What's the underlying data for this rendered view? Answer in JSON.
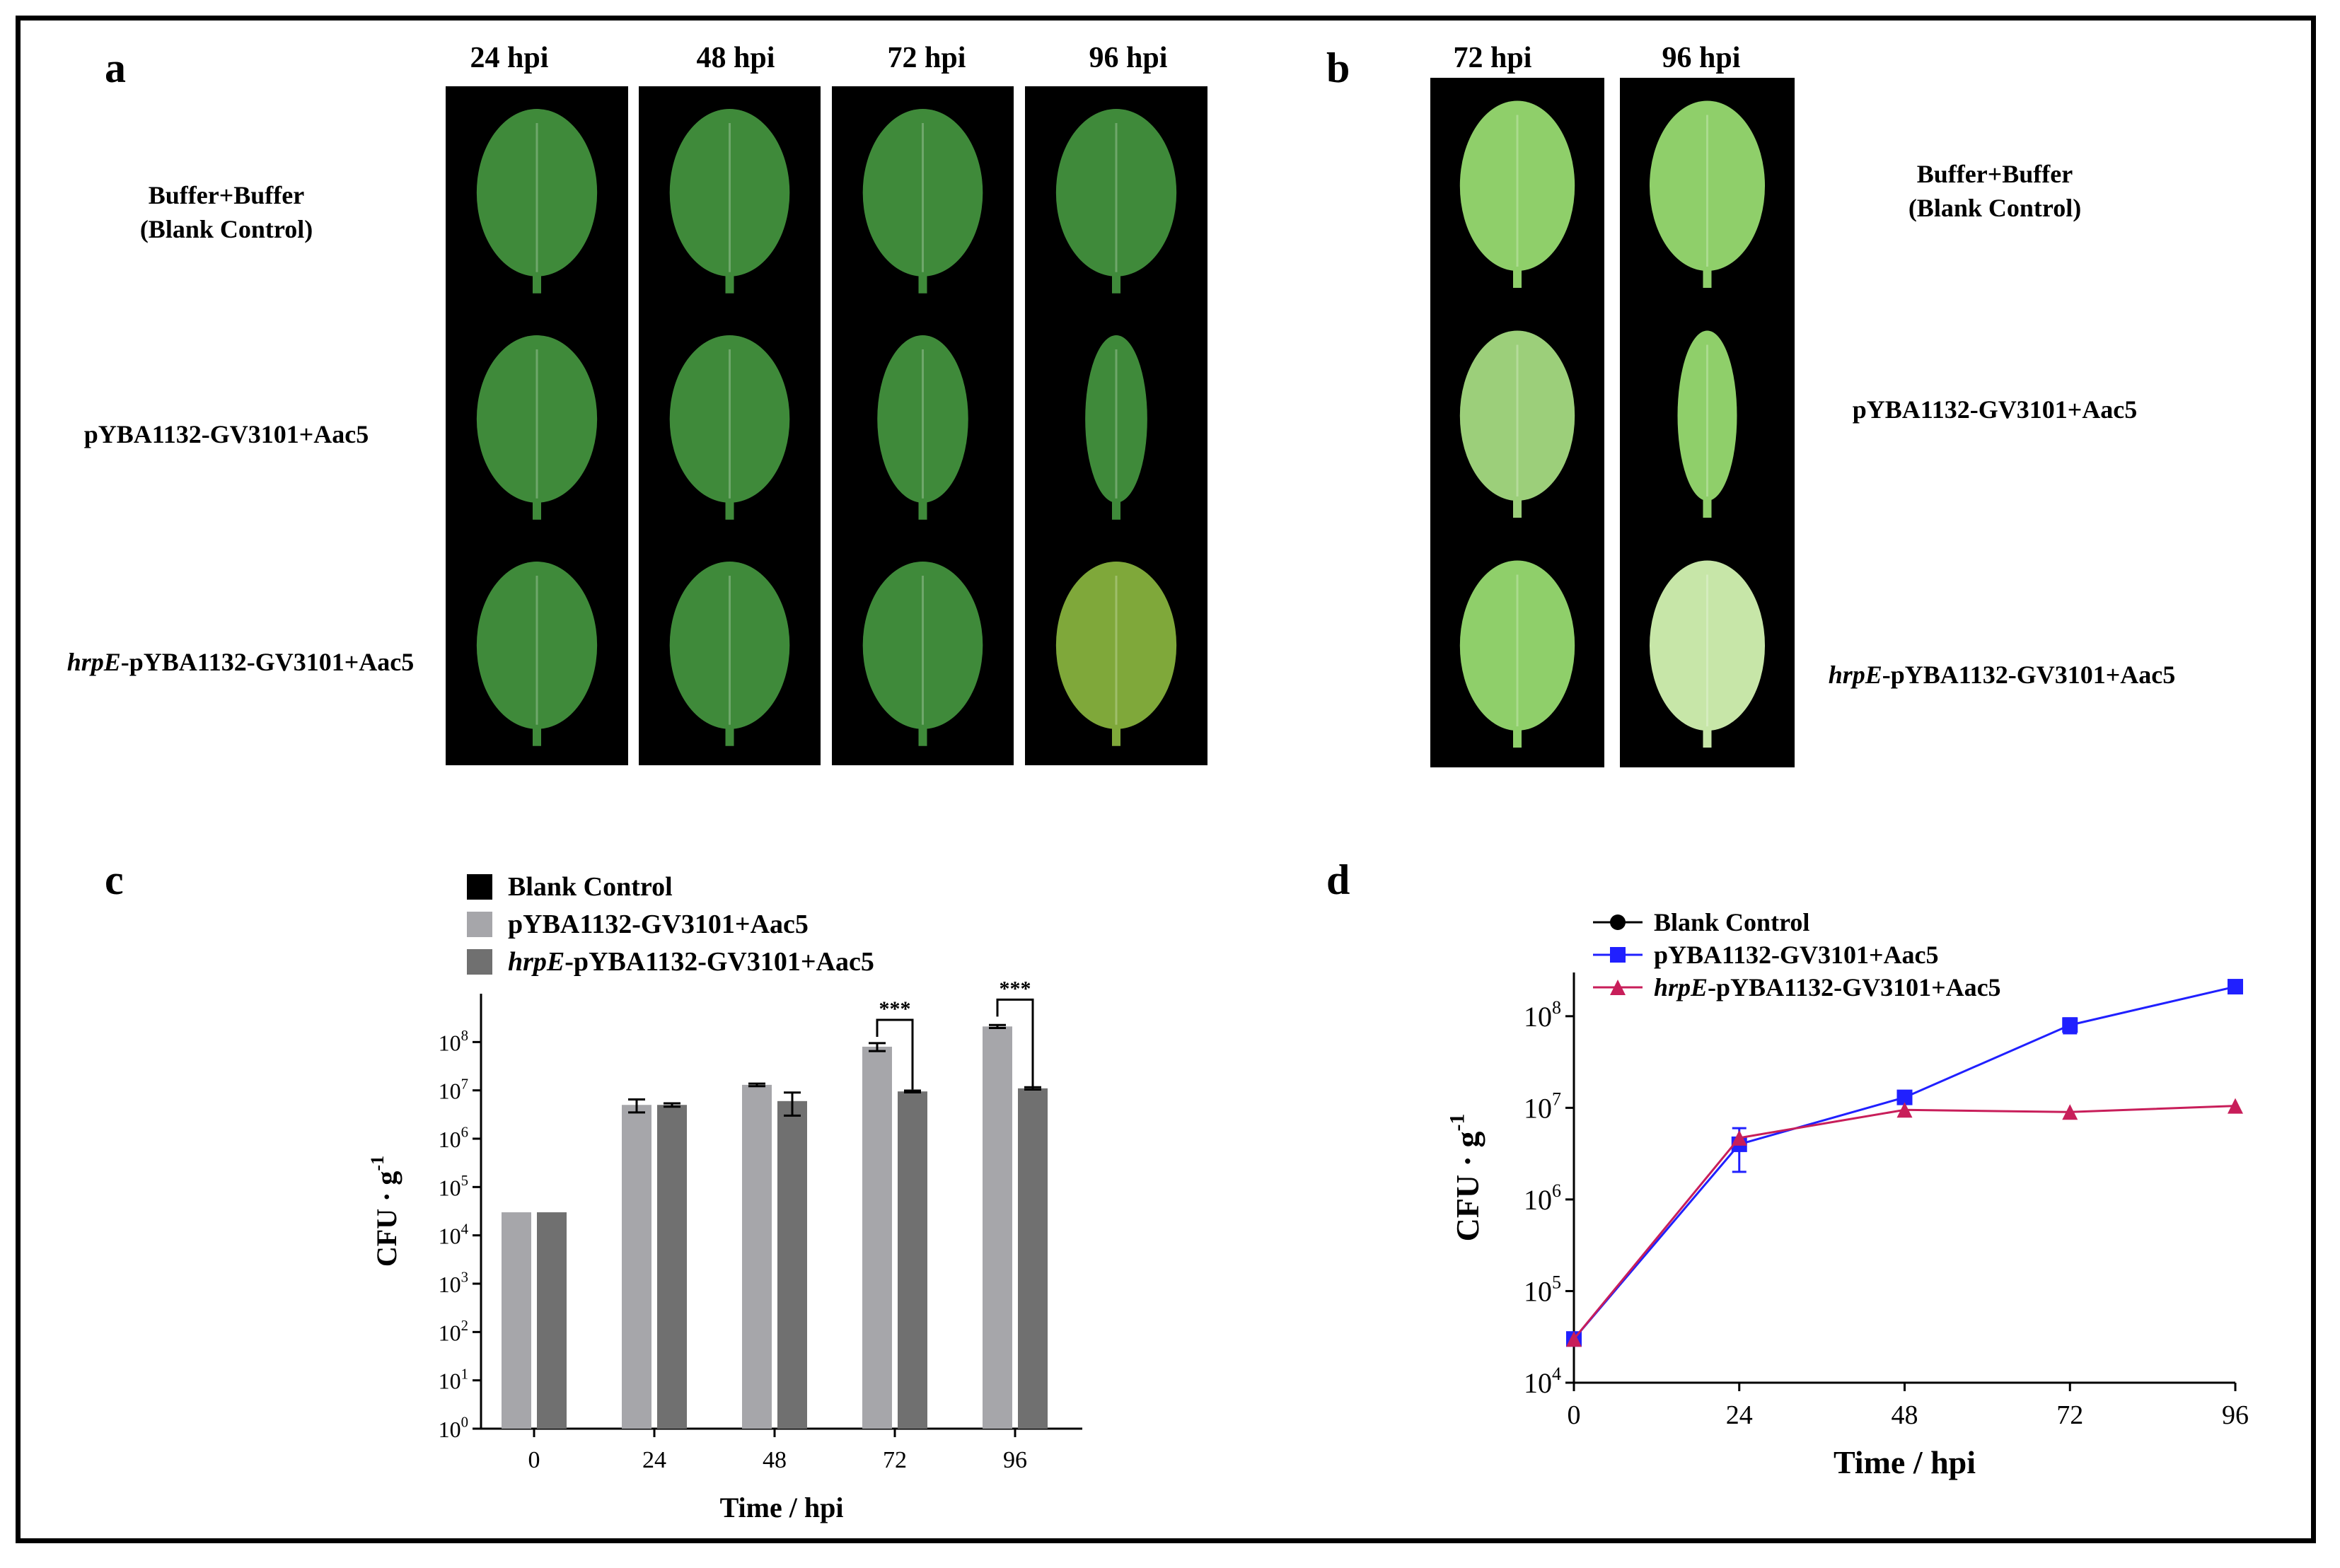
{
  "panel_a": {
    "letter": "a",
    "columns": [
      "24 hpi",
      "48 hpi",
      "72 hpi",
      "96 hpi"
    ],
    "rows": {
      "blank_line1": "Buffer+Buffer",
      "blank_line2": "(Blank Control)",
      "pyba": "pYBA1132-GV3101+Aac5",
      "hrpe_italic": "hrpE",
      "hrpe_rest": "-pYBA1132-GV3101+Aac5"
    }
  },
  "panel_b": {
    "letter": "b",
    "columns": [
      "72 hpi",
      "96 hpi"
    ],
    "rows": {
      "blank_line1": "Buffer+Buffer",
      "blank_line2": "(Blank Control)",
      "pyba": "pYBA1132-GV3101+Aac5",
      "hrpe_italic": "hrpE",
      "hrpe_rest": "-pYBA1132-GV3101+Aac5"
    }
  },
  "colors": {
    "leaf_healthy": "#3f8a3a",
    "leaf_light": "#8fcf6a",
    "bar_light": "#a6a6aa",
    "bar_dark": "#707070",
    "line_blue": "#2020ff",
    "line_red": "#c81e5a"
  },
  "chart_data": [
    {
      "panel": "c",
      "type": "bar",
      "xlabel": "Time / hpi",
      "ylabel": "CFU · g",
      "ylabel_sup": "-1",
      "y_scale": "log",
      "ylim": [
        1,
        1000000000
      ],
      "y_ticks": [
        {
          "base": "10",
          "exp": "0"
        },
        {
          "base": "10",
          "exp": "1"
        },
        {
          "base": "10",
          "exp": "2"
        },
        {
          "base": "10",
          "exp": "3"
        },
        {
          "base": "10",
          "exp": "4"
        },
        {
          "base": "10",
          "exp": "5"
        },
        {
          "base": "10",
          "exp": "6"
        },
        {
          "base": "10",
          "exp": "7"
        },
        {
          "base": "10",
          "exp": "8"
        }
      ],
      "categories": [
        "0",
        "24",
        "48",
        "72",
        "96"
      ],
      "legend": [
        {
          "label": "Blank Control",
          "italic": "",
          "color": "#000000"
        },
        {
          "label": "pYBA1132-GV3101+Aac5",
          "italic": "",
          "color": "#a6a6aa"
        },
        {
          "label": "-pYBA1132-GV3101+Aac5",
          "italic": "hrpE",
          "color": "#707070"
        }
      ],
      "series": [
        {
          "values": [
            30000,
            5000000,
            13000000,
            80000000,
            210000000
          ],
          "err": [
            0,
            1500000,
            800000,
            15000000,
            15000000
          ],
          "color": "#a6a6aa"
        },
        {
          "values": [
            30000,
            5000000,
            6000000,
            9500000,
            11000000
          ],
          "err": [
            0,
            400000,
            3000000,
            400000,
            600000
          ],
          "color": "#707070"
        }
      ],
      "significance": [
        {
          "category": "72",
          "label": "***"
        },
        {
          "category": "96",
          "label": "***"
        }
      ]
    },
    {
      "panel": "d",
      "type": "line",
      "xlabel": "Time / hpi",
      "ylabel": "CFU · g",
      "ylabel_sup": "-1",
      "y_scale": "log",
      "ylim": [
        10000,
        300000000
      ],
      "y_ticks": [
        {
          "base": "10",
          "exp": "4"
        },
        {
          "base": "10",
          "exp": "5"
        },
        {
          "base": "10",
          "exp": "6"
        },
        {
          "base": "10",
          "exp": "7"
        },
        {
          "base": "10",
          "exp": "8"
        }
      ],
      "x": [
        0,
        24,
        48,
        72,
        96
      ],
      "x_ticks": [
        "0",
        "24",
        "48",
        "72",
        "96"
      ],
      "legend": [
        {
          "label": "Blank Control",
          "italic": "",
          "color": "#000000",
          "marker": "circle"
        },
        {
          "label": "pYBA1132-GV3101+Aac5",
          "italic": "",
          "color": "#2020ff",
          "marker": "square"
        },
        {
          "label": "-pYBA1132-GV3101+Aac5",
          "italic": "hrpE",
          "color": "#c81e5a",
          "marker": "triangle"
        }
      ],
      "series": [
        {
          "values": [
            30000,
            4000000,
            13000000,
            80000000,
            210000000
          ],
          "err": [
            0,
            2000000,
            1500000,
            15000000,
            15000000
          ],
          "color": "#2020ff",
          "marker": "square"
        },
        {
          "values": [
            30000,
            4700000,
            9500000,
            9000000,
            10500000
          ],
          "err": [
            0,
            0,
            0,
            0,
            0
          ],
          "color": "#c81e5a",
          "marker": "triangle"
        }
      ]
    }
  ]
}
